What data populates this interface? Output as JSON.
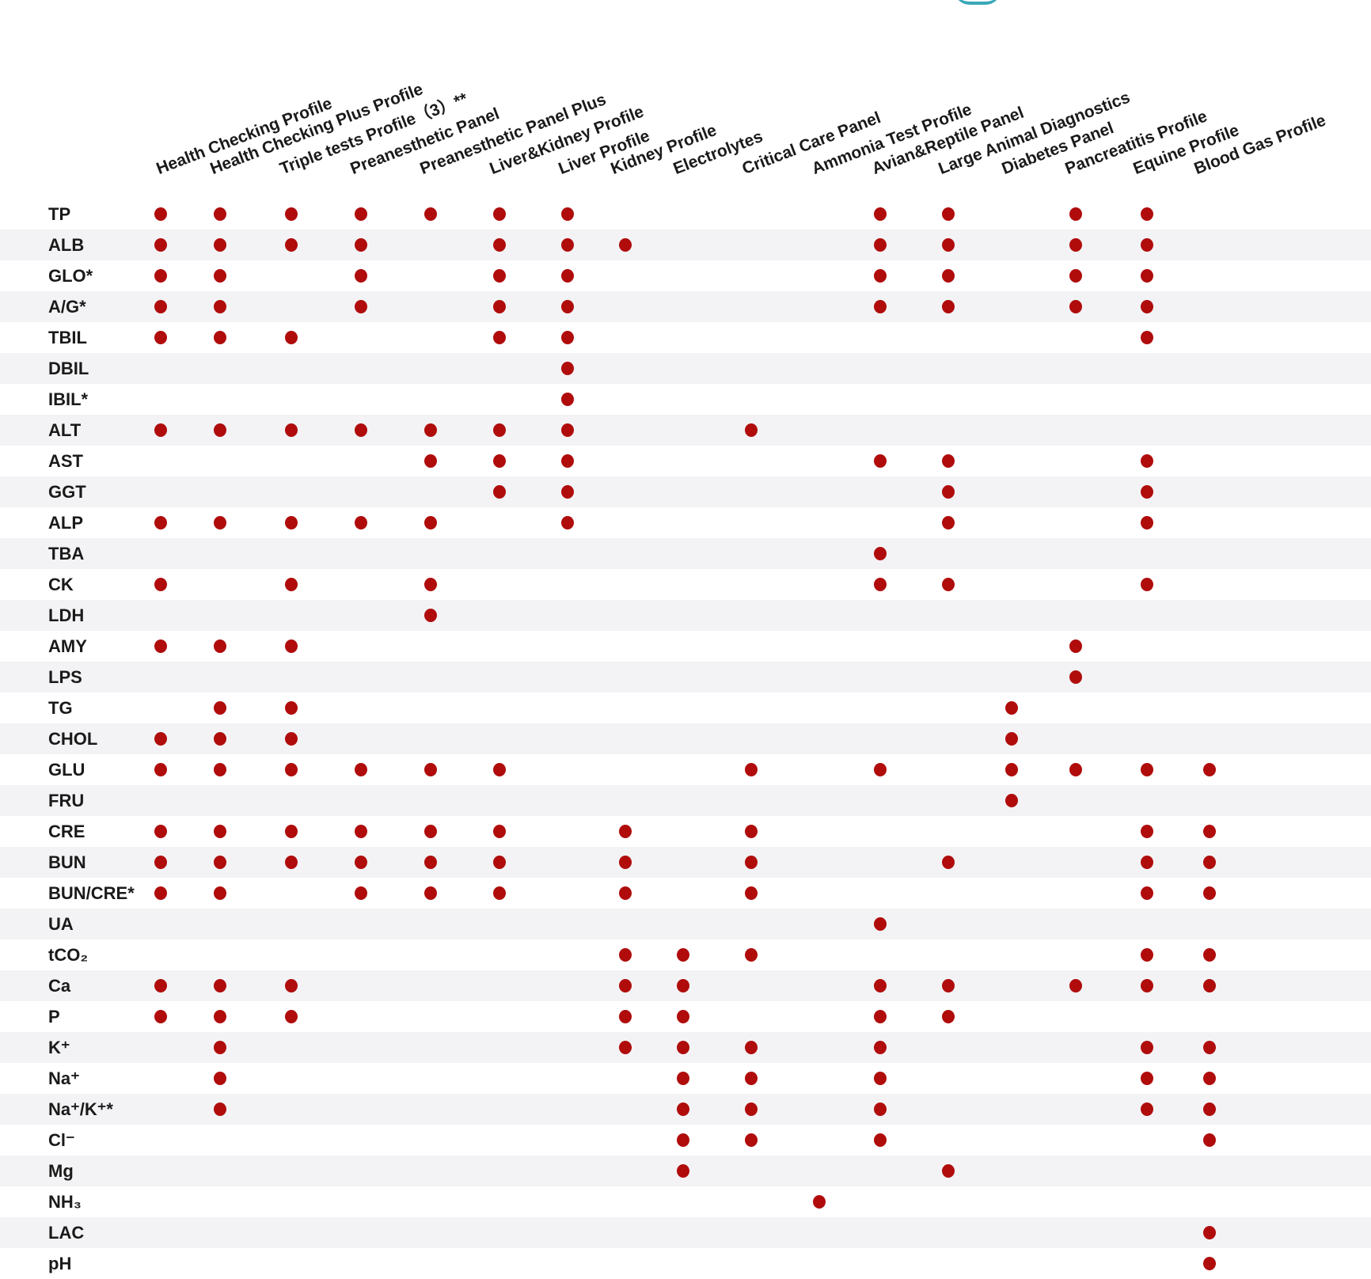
{
  "dot_color": "#b00c0c",
  "columns": [
    "Health Checking Profile",
    "Health Checking Plus Profile",
    "Triple tests Profile（3）**",
    "Preanesthetic Panel",
    "Preanesthetic Panel Plus",
    "Liver&Kidney Profile",
    "Liver Profile",
    "Kidney Profile",
    "Electrolytes",
    "Critical Care Panel",
    "Ammonia Test Profile",
    "Avian&Reptile Panel",
    "Large Animal Diagnostics",
    "Diabetes Panel",
    "Pancreatitis Profile",
    "Equine Profile",
    "Blood Gas Profile"
  ],
  "rows": [
    {
      "label": "TP",
      "cols": [
        0,
        1,
        2,
        3,
        4,
        5,
        6,
        11,
        12,
        14,
        15
      ]
    },
    {
      "label": "ALB",
      "cols": [
        0,
        1,
        2,
        3,
        5,
        6,
        7,
        11,
        12,
        14,
        15
      ]
    },
    {
      "label": "GLO*",
      "cols": [
        0,
        1,
        3,
        5,
        6,
        11,
        12,
        14,
        15
      ]
    },
    {
      "label": "A/G*",
      "cols": [
        0,
        1,
        3,
        5,
        6,
        11,
        12,
        14,
        15
      ]
    },
    {
      "label": "TBIL",
      "cols": [
        0,
        1,
        2,
        5,
        6,
        15
      ]
    },
    {
      "label": "DBIL",
      "cols": [
        6
      ]
    },
    {
      "label": "IBIL*",
      "cols": [
        6
      ]
    },
    {
      "label": "ALT",
      "cols": [
        0,
        1,
        2,
        3,
        4,
        5,
        6,
        9
      ]
    },
    {
      "label": "AST",
      "cols": [
        4,
        5,
        6,
        11,
        12,
        15
      ]
    },
    {
      "label": "GGT",
      "cols": [
        5,
        6,
        12,
        15
      ]
    },
    {
      "label": "ALP",
      "cols": [
        0,
        1,
        2,
        3,
        4,
        6,
        12,
        15
      ]
    },
    {
      "label": "TBA",
      "cols": [
        11
      ]
    },
    {
      "label": "CK",
      "cols": [
        0,
        2,
        4,
        11,
        12,
        15
      ]
    },
    {
      "label": "LDH",
      "cols": [
        4
      ]
    },
    {
      "label": "AMY",
      "cols": [
        0,
        1,
        2,
        14
      ]
    },
    {
      "label": "LPS",
      "cols": [
        14
      ]
    },
    {
      "label": "TG",
      "cols": [
        1,
        2,
        13
      ]
    },
    {
      "label": "CHOL",
      "cols": [
        0,
        1,
        2,
        13
      ]
    },
    {
      "label": "GLU",
      "cols": [
        0,
        1,
        2,
        3,
        4,
        5,
        9,
        11,
        13,
        14,
        15,
        16
      ]
    },
    {
      "label": "FRU",
      "cols": [
        13
      ]
    },
    {
      "label": "CRE",
      "cols": [
        0,
        1,
        2,
        3,
        4,
        5,
        7,
        9,
        15,
        16
      ]
    },
    {
      "label": "BUN",
      "cols": [
        0,
        1,
        2,
        3,
        4,
        5,
        7,
        9,
        12,
        15,
        16
      ]
    },
    {
      "label": "BUN/CRE*",
      "cols": [
        0,
        1,
        3,
        4,
        5,
        7,
        9,
        15,
        16
      ]
    },
    {
      "label": "UA",
      "cols": [
        11
      ]
    },
    {
      "label": "tCO₂",
      "cols": [
        7,
        8,
        9,
        15,
        16
      ]
    },
    {
      "label": "Ca",
      "cols": [
        0,
        1,
        2,
        7,
        8,
        11,
        12,
        14,
        15,
        16
      ]
    },
    {
      "label": "P",
      "cols": [
        0,
        1,
        2,
        7,
        8,
        11,
        12
      ]
    },
    {
      "label": "K⁺",
      "cols": [
        1,
        7,
        8,
        9,
        11,
        15,
        16
      ]
    },
    {
      "label": "Na⁺",
      "cols": [
        1,
        8,
        9,
        11,
        15,
        16
      ]
    },
    {
      "label": "Na⁺/K⁺*",
      "cols": [
        1,
        8,
        9,
        11,
        15,
        16
      ]
    },
    {
      "label": "Cl⁻",
      "cols": [
        8,
        9,
        11,
        16
      ]
    },
    {
      "label": "Mg",
      "cols": [
        8,
        12
      ]
    },
    {
      "label": "NH₃",
      "cols": [
        10
      ]
    },
    {
      "label": "LAC",
      "cols": [
        16
      ]
    },
    {
      "label": "pH",
      "cols": [
        16
      ]
    }
  ]
}
